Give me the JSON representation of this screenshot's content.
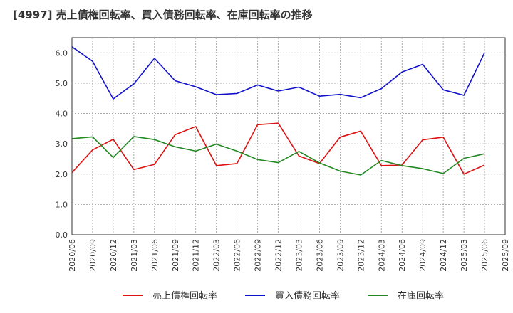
{
  "chart_data": {
    "type": "line",
    "title": "[4997]  売上債権回転率、買入債務回転率、在庫回転率の推移",
    "xlabel": "",
    "ylabel": "",
    "ylim": [
      0,
      6.5
    ],
    "yticks": [
      "0.0",
      "1.0",
      "2.0",
      "3.0",
      "4.0",
      "5.0",
      "6.0"
    ],
    "categories": [
      "2020/06",
      "2020/09",
      "2020/12",
      "2021/03",
      "2021/06",
      "2021/09",
      "2021/12",
      "2022/03",
      "2022/06",
      "2022/09",
      "2022/12",
      "2023/03",
      "2023/06",
      "2023/09",
      "2023/12",
      "2024/03",
      "2024/06",
      "2024/09",
      "2024/12",
      "2025/03",
      "2025/06",
      "2025/09"
    ],
    "legend_position": "bottom",
    "grid": true,
    "series": [
      {
        "name": "売上債権回転率",
        "color": "#dd1111",
        "values": [
          2.05,
          2.8,
          3.15,
          2.15,
          2.32,
          3.3,
          3.57,
          2.28,
          2.35,
          3.63,
          3.68,
          2.6,
          2.35,
          3.22,
          3.42,
          2.28,
          2.3,
          3.13,
          3.22,
          2.0,
          2.3,
          null
        ]
      },
      {
        "name": "買入債務回転率",
        "color": "#1111cc",
        "values": [
          6.2,
          5.72,
          4.48,
          4.98,
          5.82,
          5.08,
          4.88,
          4.62,
          4.66,
          4.94,
          4.74,
          4.87,
          4.57,
          4.63,
          4.52,
          4.82,
          5.37,
          5.62,
          4.78,
          4.6,
          6.0,
          null
        ]
      },
      {
        "name": "在庫回転率",
        "color": "#228822",
        "values": [
          3.17,
          3.23,
          2.55,
          3.24,
          3.14,
          2.9,
          2.76,
          2.99,
          2.76,
          2.48,
          2.38,
          2.75,
          2.37,
          2.1,
          1.97,
          2.45,
          2.28,
          2.18,
          2.02,
          2.52,
          2.67,
          null
        ]
      }
    ]
  }
}
